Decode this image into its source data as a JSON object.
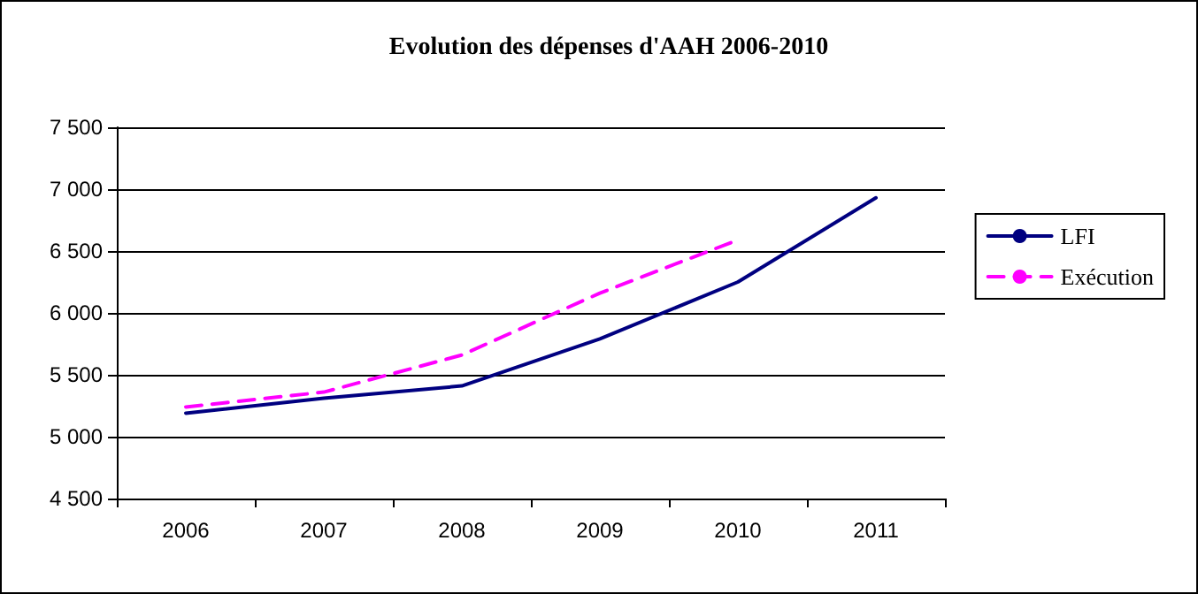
{
  "chart_data": {
    "type": "line",
    "title": "Evolution des dépenses d'AAH 2006-2010",
    "categories": [
      "2006",
      "2007",
      "2008",
      "2009",
      "2010",
      "2011"
    ],
    "series": [
      {
        "name": "LFI",
        "color": "#000080",
        "line_style": "solid",
        "values": [
          5190,
          5310,
          5410,
          5790,
          6250,
          6930
        ]
      },
      {
        "name": "Exécution",
        "color": "#ff00ff",
        "line_style": "dashed",
        "values": [
          5240,
          5360,
          5660,
          6160,
          6590,
          null
        ]
      }
    ],
    "ylim": [
      4500,
      7500
    ],
    "yticks": [
      {
        "value": 4500,
        "label": "4 500"
      },
      {
        "value": 5000,
        "label": "5 000"
      },
      {
        "value": 5500,
        "label": "5 500"
      },
      {
        "value": 6000,
        "label": "6 000"
      },
      {
        "value": 6500,
        "label": "6 500"
      },
      {
        "value": 7000,
        "label": "7 000"
      },
      {
        "value": 7500,
        "label": "7 500"
      }
    ],
    "grid": "y",
    "legend": "right",
    "marker": "none"
  }
}
